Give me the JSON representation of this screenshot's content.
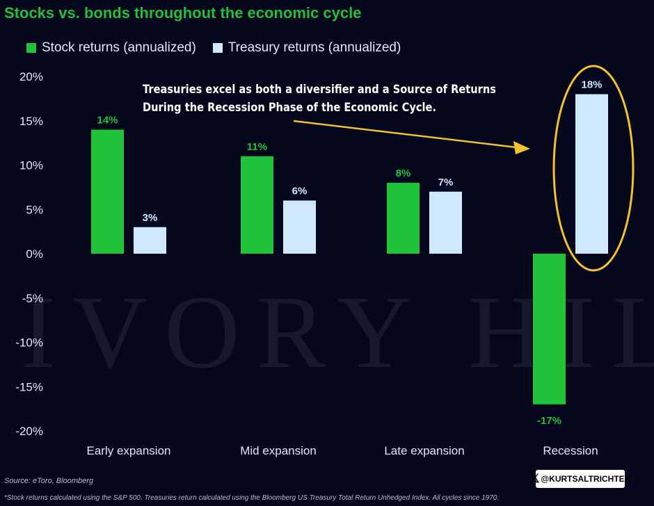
{
  "title": "Stocks vs. bonds throughout the economic cycle",
  "annotation": {
    "line1": "Treasuries excel as both a diversifier and a Source of Returns",
    "line2": "During the Recession Phase of the Economic Cycle."
  },
  "watermark": "IVORY HILL",
  "source": "Source: eToro, Bloomberg",
  "footnote": "*Stock returns calculated using the S&P 500. Treasuries return calculated using the Bloomberg US Treasury Total Return Unhedged Index. All cycles since 1970.",
  "handle": {
    "icon": "x-logo-icon",
    "text": "@KURTSALTRICHTER"
  },
  "colors": {
    "stock": "#1fc43a",
    "treasury": "#cfe8fb",
    "highlight": "#f2c230",
    "title": "#22c03d"
  },
  "chart_data": {
    "type": "bar",
    "categories": [
      "Early expansion",
      "Mid expansion",
      "Late expansion",
      "Recession"
    ],
    "series": [
      {
        "name": "Stock returns (annualized)",
        "values": [
          14,
          11,
          8,
          -17
        ],
        "labels": [
          "14%",
          "11%",
          "8%",
          "-17%"
        ]
      },
      {
        "name": "Treasury returns (annualized)",
        "values": [
          3,
          6,
          7,
          18
        ],
        "labels": [
          "3%",
          "6%",
          "7%",
          "18%"
        ]
      }
    ],
    "y_ticks": [
      20,
      15,
      10,
      5,
      0,
      -5,
      -10,
      -15,
      -20
    ],
    "y_tick_labels": [
      "20%",
      "15%",
      "10%",
      "5%",
      "0%",
      "-5%",
      "-10%",
      "-15%",
      "-20%"
    ],
    "ylim": [
      -20,
      20
    ],
    "grid": false,
    "legend_position": "top-left",
    "highlight": "Recession treasury bar circled"
  }
}
